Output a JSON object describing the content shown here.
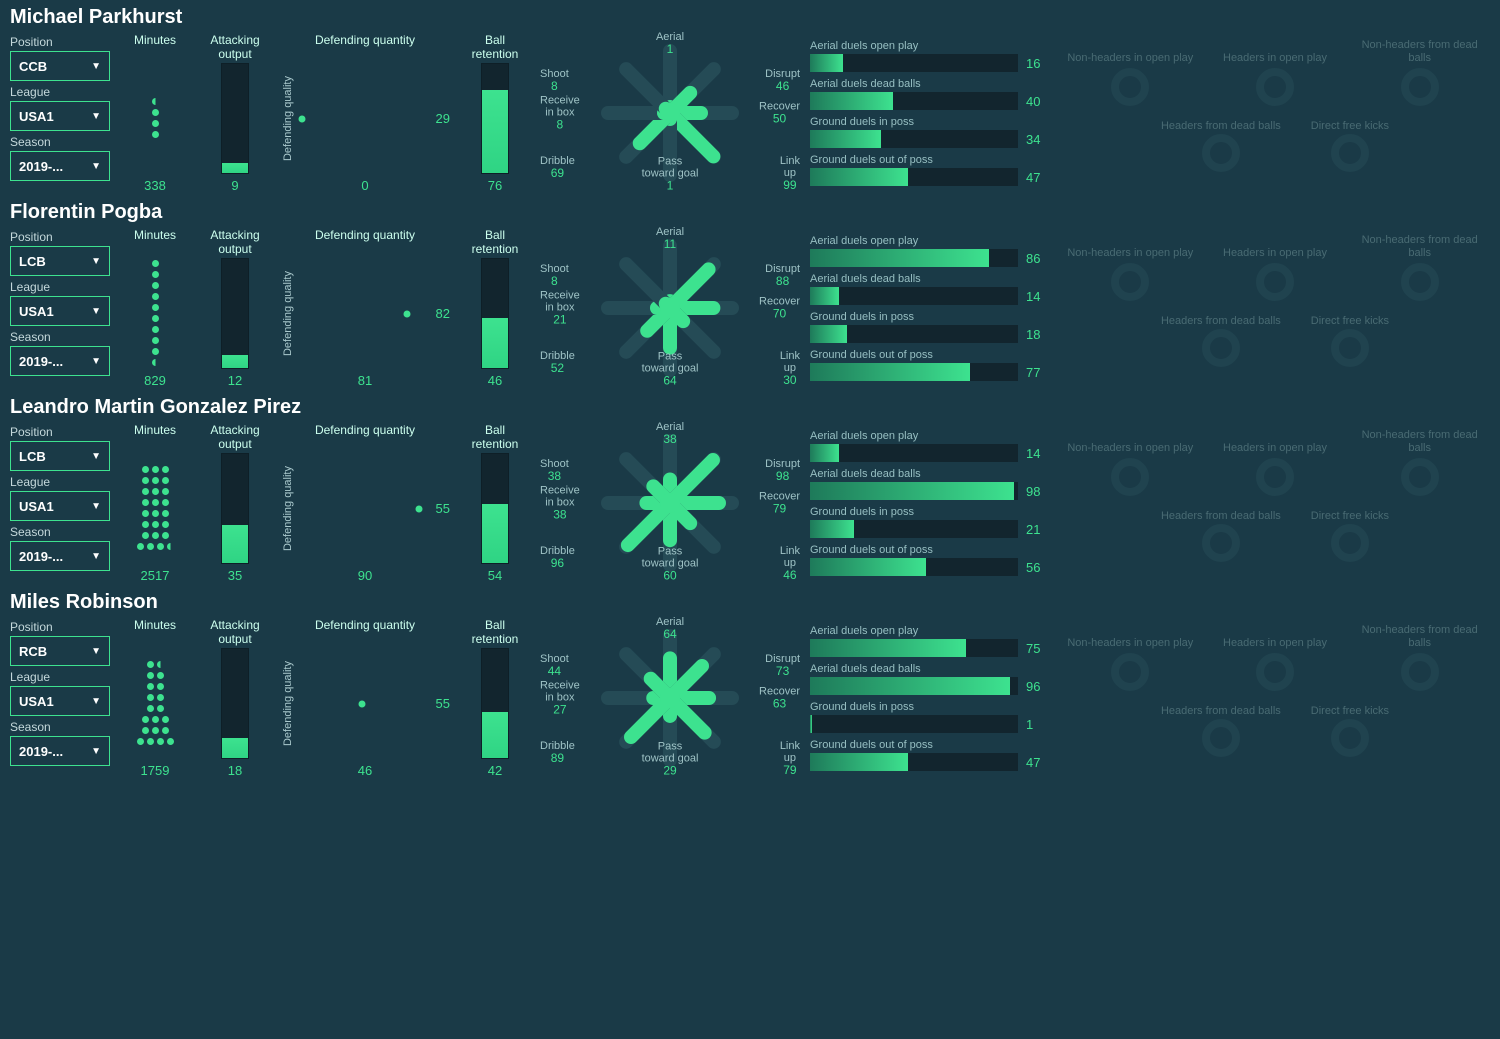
{
  "colors": {
    "bg": "#1a3a47",
    "panel": "#12252e",
    "accent": "#3de28f",
    "text": "#cfe8ea",
    "muted": "#6f9296"
  },
  "labels": {
    "position": "Position",
    "league": "League",
    "season": "Season",
    "minutes": "Minutes",
    "attacking": "Attacking output",
    "def_quantity": "Defending quantity",
    "def_quality": "Defending quality",
    "retention": "Ball retention",
    "radar": {
      "aerial": "Aerial",
      "disrupt": "Disrupt",
      "recover": "Recover",
      "linkup": "Link up",
      "pass_goal": "Pass toward goal",
      "dribble": "Dribble",
      "receive": "Receive in box",
      "shoot": "Shoot"
    },
    "duels": {
      "a_open": "Aerial duels open play",
      "a_dead": "Aerial duels dead balls",
      "g_poss": "Ground duels in poss",
      "g_out": "Ground duels out of poss"
    },
    "donuts": {
      "nh_open": "Non-headers in open play",
      "h_open": "Headers in open play",
      "nh_dead": "Non-headers from dead balls",
      "h_dead": "Headers from dead balls",
      "dfk": "Direct free kicks"
    }
  },
  "players": [
    {
      "name": "Michael Parkhurst",
      "position": "CCB",
      "league": "USA1",
      "season": "2019-...",
      "minutes": 338,
      "minutes_dots": [
        [
          0.5
        ],
        [
          1
        ],
        [
          1
        ],
        [
          1
        ]
      ],
      "attacking": 9,
      "def_quantity": 0,
      "def_quality": 29,
      "retention": 76,
      "radar": {
        "aerial": 1,
        "disrupt": 46,
        "recover": 50,
        "linkup": 99,
        "pass_goal": 1,
        "dribble": 69,
        "receive": 8,
        "shoot": 8
      },
      "duels": {
        "a_open": 16,
        "a_dead": 40,
        "g_poss": 34,
        "g_out": 47
      }
    },
    {
      "name": "Florentin Pogba",
      "position": "LCB",
      "league": "USA1",
      "season": "2019-...",
      "minutes": 829,
      "minutes_dots": [
        [
          1
        ],
        [
          1
        ],
        [
          1
        ],
        [
          1
        ],
        [
          1
        ],
        [
          1
        ],
        [
          1
        ],
        [
          1
        ],
        [
          1
        ],
        [
          0.5
        ]
      ],
      "attacking": 12,
      "def_quantity": 81,
      "def_quality": 82,
      "retention": 46,
      "radar": {
        "aerial": 11,
        "disrupt": 88,
        "recover": 70,
        "linkup": 30,
        "pass_goal": 64,
        "dribble": 52,
        "receive": 21,
        "shoot": 8
      },
      "duels": {
        "a_open": 86,
        "a_dead": 14,
        "g_poss": 18,
        "g_out": 77
      }
    },
    {
      "name": "Leandro Martin Gonzalez Pirez",
      "position": "LCB",
      "league": "USA1",
      "season": "2019-...",
      "minutes": 2517,
      "minutes_dots": [
        [
          1,
          1,
          1
        ],
        [
          1,
          1,
          1
        ],
        [
          1,
          1,
          1
        ],
        [
          1,
          1,
          1
        ],
        [
          1,
          1,
          1
        ],
        [
          1,
          1,
          1
        ],
        [
          1,
          1,
          1
        ],
        [
          1,
          1,
          1,
          0.5
        ]
      ],
      "attacking": 35,
      "def_quantity": 90,
      "def_quality": 55,
      "retention": 54,
      "radar": {
        "aerial": 38,
        "disrupt": 98,
        "recover": 79,
        "linkup": 46,
        "pass_goal": 60,
        "dribble": 96,
        "receive": 38,
        "shoot": 38
      },
      "duels": {
        "a_open": 14,
        "a_dead": 98,
        "g_poss": 21,
        "g_out": 56
      }
    },
    {
      "name": "Miles Robinson",
      "position": "RCB",
      "league": "USA1",
      "season": "2019-...",
      "minutes": 1759,
      "minutes_dots": [
        [
          1,
          0.5
        ],
        [
          1,
          1
        ],
        [
          1,
          1
        ],
        [
          1,
          1
        ],
        [
          1,
          1
        ],
        [
          1,
          1,
          1
        ],
        [
          1,
          1,
          1
        ],
        [
          1,
          1,
          1,
          1
        ]
      ],
      "attacking": 18,
      "def_quantity": 46,
      "def_quality": 55,
      "retention": 42,
      "radar": {
        "aerial": 64,
        "disrupt": 73,
        "recover": 63,
        "linkup": 79,
        "pass_goal": 29,
        "dribble": 89,
        "receive": 27,
        "shoot": 44
      },
      "duels": {
        "a_open": 75,
        "a_dead": 96,
        "g_poss": 1,
        "g_out": 47
      }
    }
  ]
}
